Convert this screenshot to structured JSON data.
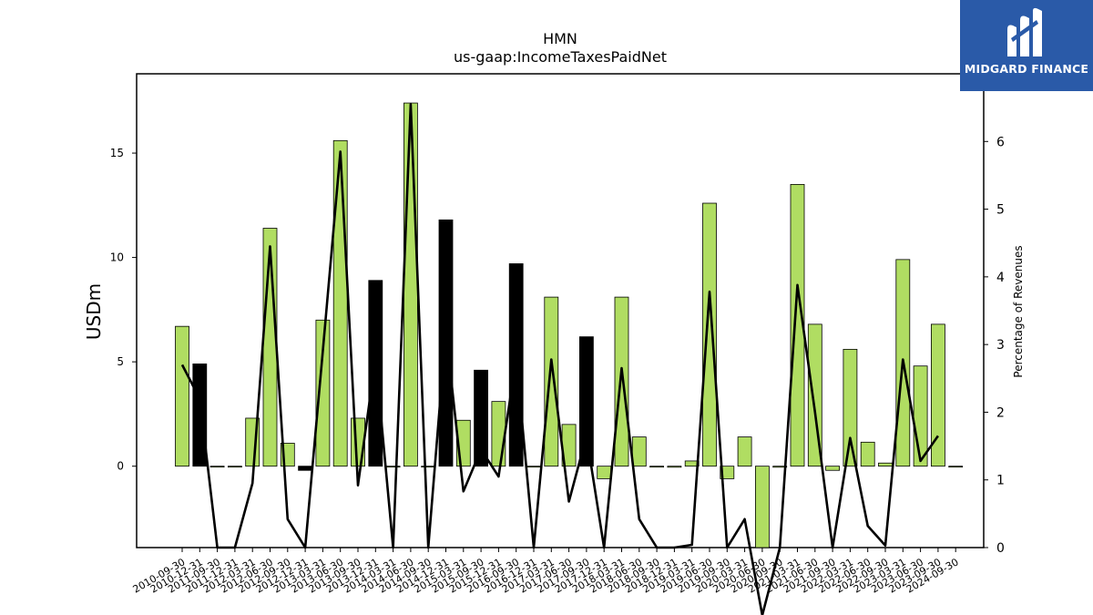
{
  "brand": {
    "name": "MIDGARD FINANCE",
    "color": "#2a5aa8"
  },
  "chart_data": {
    "type": "bar",
    "title": "HMN",
    "subtitle": "us-gaap:IncomeTaxesPaidNet",
    "ylabel": "USDm",
    "y2label": "Percentage of Revenues",
    "ylim": [
      -3.9,
      18.8
    ],
    "y2lim": [
      0,
      7.0
    ],
    "yticks": [
      0,
      5,
      10,
      15
    ],
    "y2ticks": [
      0,
      1,
      2,
      3,
      4,
      5,
      6
    ],
    "colors": {
      "annual": "#b0dd62",
      "quarterly": "#000000",
      "line": "#000000"
    },
    "categories": [
      "2010-09-30",
      "2010-12-31",
      "2011-09-30",
      "2011-12-31",
      "2012-03-31",
      "2012-06-30",
      "2012-09-30",
      "2012-12-31",
      "2013-03-31",
      "2013-06-30",
      "2013-09-30",
      "2013-12-31",
      "2014-03-31",
      "2014-06-30",
      "2014-09-30",
      "2014-12-31",
      "2015-03-31",
      "2015-09-30",
      "2015-12-31",
      "2016-09-30",
      "2016-12-31",
      "2017-03-31",
      "2017-06-30",
      "2017-09-30",
      "2017-12-31",
      "2018-03-31",
      "2018-06-30",
      "2018-09-30",
      "2018-12-31",
      "2019-03-31",
      "2019-06-30",
      "2019-09-30",
      "2020-03-31",
      "2020-06-30",
      "2020-09-30",
      "2021-03-31",
      "2021-06-30",
      "2021-09-30",
      "2022-03-31",
      "2022-06-30",
      "2022-09-30",
      "2023-03-31",
      "2023-06-30",
      "2023-09-30",
      "2024-09-30"
    ],
    "series": [
      {
        "kind": "bar",
        "values": [
          6.7,
          4.9,
          0,
          0,
          2.3,
          11.4,
          1.1,
          -0.2,
          7.0,
          15.6,
          2.3,
          8.9,
          0,
          17.4,
          0,
          11.8,
          2.2,
          4.6,
          3.1,
          9.7,
          0,
          8.1,
          2.0,
          6.2,
          -0.6,
          8.1,
          1.4,
          0,
          -0.05,
          0.25,
          12.6,
          -0.6,
          1.4,
          -3.9,
          -0.05,
          13.5,
          6.8,
          -0.2,
          5.6,
          1.15,
          0.15,
          9.9,
          4.8,
          6.8,
          0
        ],
        "quarterly_flags": [
          0,
          1,
          0,
          0,
          0,
          0,
          0,
          1,
          0,
          0,
          0,
          1,
          0,
          0,
          0,
          1,
          0,
          1,
          0,
          1,
          0,
          0,
          0,
          1,
          0,
          0,
          0,
          0,
          0,
          0,
          0,
          0,
          0,
          0,
          0,
          0,
          0,
          0,
          0,
          0,
          0,
          0,
          0,
          0,
          0
        ]
      },
      {
        "kind": "line",
        "axis": "right",
        "values": [
          2.7,
          2.2,
          0,
          0,
          0.95,
          4.45,
          0.42,
          0,
          2.9,
          5.85,
          0.92,
          2.8,
          0,
          6.55,
          0,
          3.2,
          0.83,
          1.45,
          1.05,
          2.8,
          0,
          2.78,
          0.68,
          1.65,
          0,
          2.65,
          0.42,
          0,
          0,
          0.04,
          3.78,
          0,
          0.42,
          -1.0,
          0,
          3.88,
          2.0,
          0,
          1.62,
          0.32,
          0.03,
          2.78,
          1.28,
          1.65,
          null
        ]
      }
    ]
  }
}
